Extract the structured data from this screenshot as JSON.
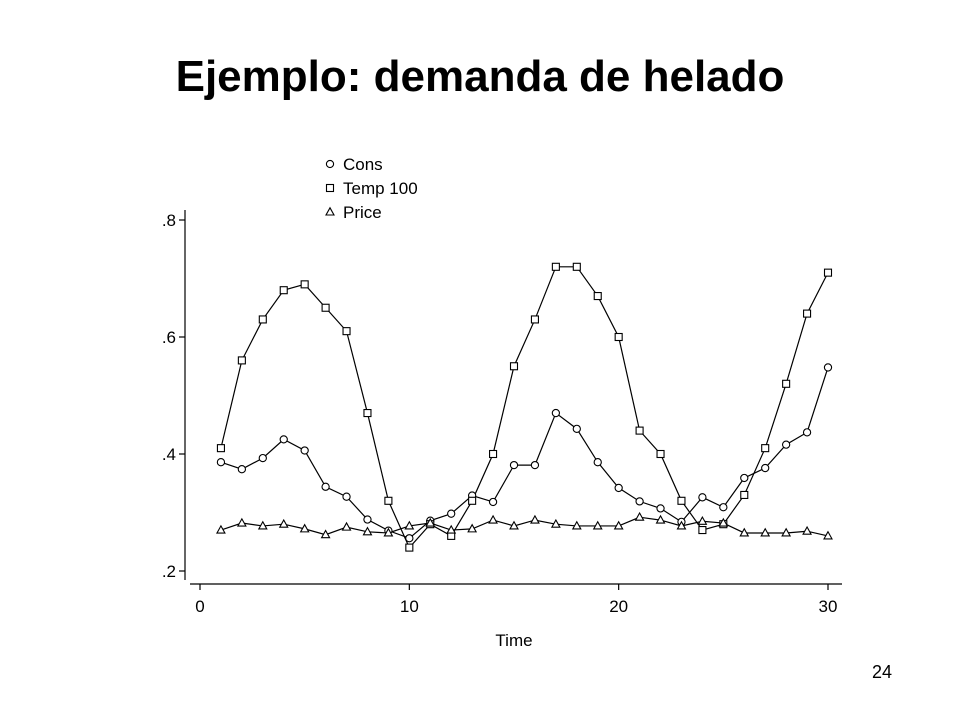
{
  "slide": {
    "title": "Ejemplo: demanda de helado",
    "page_number": "24"
  },
  "chart_data": {
    "type": "line",
    "xlabel": "Time",
    "ylabel": "",
    "xlim": [
      0,
      30
    ],
    "ylim": [
      0.2,
      0.8
    ],
    "x_ticks": [
      0,
      10,
      20,
      30
    ],
    "x_tick_labels": [
      "0",
      "10",
      "20",
      "30"
    ],
    "y_ticks": [
      0.2,
      0.4,
      0.6,
      0.8
    ],
    "y_tick_labels": [
      ".2",
      ".4",
      ".6",
      ".8"
    ],
    "grid": false,
    "legend_position": "top-left",
    "x": [
      1,
      2,
      3,
      4,
      5,
      6,
      7,
      8,
      9,
      10,
      11,
      12,
      13,
      14,
      15,
      16,
      17,
      18,
      19,
      20,
      21,
      22,
      23,
      24,
      25,
      26,
      27,
      28,
      29,
      30
    ],
    "series": [
      {
        "name": "Cons",
        "marker": "circle",
        "color": "#000000",
        "values": [
          0.386,
          0.374,
          0.393,
          0.425,
          0.406,
          0.344,
          0.327,
          0.288,
          0.269,
          0.256,
          0.286,
          0.298,
          0.329,
          0.318,
          0.381,
          0.381,
          0.47,
          0.443,
          0.386,
          0.342,
          0.319,
          0.307,
          0.284,
          0.326,
          0.309,
          0.359,
          0.376,
          0.416,
          0.437,
          0.548
        ]
      },
      {
        "name": "Temp 100",
        "marker": "square",
        "color": "#000000",
        "values": [
          0.41,
          0.56,
          0.63,
          0.68,
          0.69,
          0.65,
          0.61,
          0.47,
          0.32,
          0.24,
          0.28,
          0.26,
          0.32,
          0.4,
          0.55,
          0.63,
          0.72,
          0.72,
          0.67,
          0.6,
          0.44,
          0.4,
          0.32,
          0.27,
          0.28,
          0.33,
          0.41,
          0.52,
          0.64,
          0.71
        ]
      },
      {
        "name": "Price",
        "marker": "triangle",
        "color": "#000000",
        "values": [
          0.27,
          0.282,
          0.277,
          0.28,
          0.272,
          0.262,
          0.275,
          0.267,
          0.265,
          0.277,
          0.282,
          0.27,
          0.272,
          0.287,
          0.277,
          0.287,
          0.28,
          0.277,
          0.277,
          0.277,
          0.292,
          0.287,
          0.277,
          0.285,
          0.282,
          0.265,
          0.265,
          0.265,
          0.268,
          0.26
        ]
      }
    ]
  }
}
